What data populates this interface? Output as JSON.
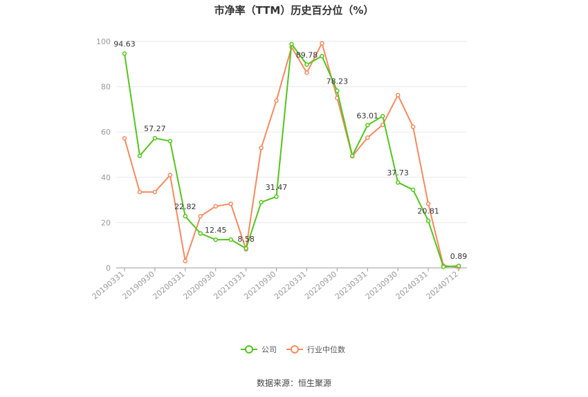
{
  "chart_data": {
    "type": "line",
    "title": "市净率（TTM）历史百分位（%）",
    "ylim": [
      0,
      100
    ],
    "yticks": [
      "0",
      "20",
      "40",
      "60",
      "80",
      "100"
    ],
    "x_tick_labels": [
      "20190331",
      "20190930",
      "20200331",
      "20200930",
      "20210331",
      "20210930",
      "20220331",
      "20220930",
      "20230331",
      "20230930",
      "20240331",
      "20240712"
    ],
    "grid": true,
    "legend_position": "bottom",
    "series": [
      {
        "name": "公司",
        "color": "#52c41a",
        "values": [
          94.63,
          49.5,
          57.27,
          56.0,
          22.82,
          15.2,
          12.45,
          12.5,
          8.58,
          29.0,
          31.47,
          98.8,
          89.78,
          93.5,
          78.23,
          49.5,
          63.01,
          67.0,
          37.73,
          34.5,
          20.81,
          0.5,
          0.89
        ],
        "labels": {
          "0": "94.63",
          "2": "57.27",
          "4": "22.82",
          "6": "12.45",
          "8": "8.58",
          "10": "31.47",
          "12": "89.78",
          "14": "78.23",
          "16": "63.01",
          "18": "37.73",
          "20": "20.81",
          "22": "0.89"
        }
      },
      {
        "name": "行业中位数",
        "color": "#f5895e",
        "values": [
          57.2,
          33.5,
          33.5,
          41.0,
          3.0,
          22.8,
          27.2,
          28.3,
          8.2,
          53.0,
          73.8,
          97.5,
          86.2,
          99.2,
          75.0,
          49.3,
          57.5,
          63.2,
          76.3,
          62.3,
          28.3,
          1.0,
          0.3
        ]
      }
    ]
  },
  "source": "数据来源：恒生聚源"
}
